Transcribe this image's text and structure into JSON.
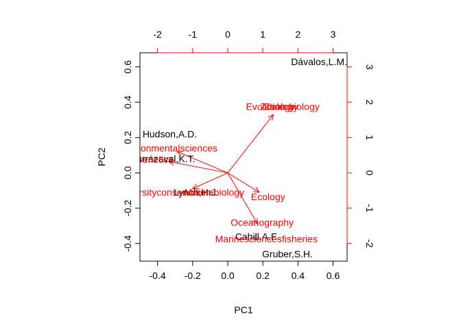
{
  "chart_data": {
    "type": "scatter",
    "subtype": "biplot",
    "title": "",
    "xlabel": "PC1",
    "ylabel": "PC2",
    "xlim": [
      -0.5,
      0.68
    ],
    "ylim": [
      -0.5,
      0.68
    ],
    "xticks": [
      -0.4,
      -0.2,
      0.0,
      0.2,
      0.4,
      0.6
    ],
    "xtick_labels": [
      "-0.4",
      "-0.2",
      "0.0",
      "0.2",
      "0.4",
      "0.6"
    ],
    "yticks": [
      -0.4,
      -0.2,
      0.0,
      0.2,
      0.4,
      0.6
    ],
    "ytick_labels": [
      "-0.4",
      "-0.2",
      "0.0",
      "0.2",
      "0.4",
      "0.6"
    ],
    "top_axis": {
      "lim": [
        -2.5,
        3.4
      ],
      "ticks": [
        -2,
        -1,
        0,
        1,
        2,
        3
      ],
      "tick_labels": [
        "-2",
        "-1",
        "0",
        "1",
        "2",
        "3"
      ],
      "color": "#ff0000"
    },
    "right_axis": {
      "lim": [
        -2.5,
        3.4
      ],
      "ticks": [
        -2,
        -1,
        0,
        1,
        2,
        3
      ],
      "tick_labels": [
        "-2",
        "-1",
        "0",
        "1",
        "2",
        "3"
      ],
      "color": "#ff0000"
    },
    "grid": false,
    "scores": {
      "color": "#000000",
      "points": [
        {
          "label": "Dávalos,L.M.",
          "x": 0.52,
          "y": 0.63
        },
        {
          "label": "Hudson,A.D.",
          "x": -0.33,
          "y": 0.22
        },
        {
          "label": "Yrarrázaval,K.T.",
          "x": -0.38,
          "y": 0.08
        },
        {
          "label": "Lynch,H.J.",
          "x": -0.18,
          "y": -0.11
        },
        {
          "label": "Cahill,A.E.",
          "x": 0.17,
          "y": -0.36
        },
        {
          "label": "Gruber,S.H.",
          "x": 0.34,
          "y": -0.46
        }
      ]
    },
    "loadings": {
      "color": "#ff0000",
      "arrows": [
        {
          "label": "Evolution",
          "x": 1.3,
          "y": 1.65,
          "lx": 1.08,
          "ly": 1.88
        },
        {
          "label": "Zoology",
          "x": 1.3,
          "y": 1.65,
          "lx": 1.42,
          "ly": 1.88
        },
        {
          "label": "Zoology",
          "x": 1.3,
          "y": 1.65,
          "lx": 1.52,
          "ly": 1.88
        },
        {
          "label": "biology",
          "x": 1.3,
          "y": 1.65,
          "lx": 2.18,
          "ly": 1.88
        },
        {
          "label": "Environmentalsciences",
          "x": -1.44,
          "y": 0.6,
          "lx": -1.7,
          "ly": 0.7
        },
        {
          "label": "Genetics",
          "x": -1.68,
          "y": 0.32,
          "lx": -2.1,
          "ly": 0.38
        },
        {
          "label": "Biodiversityconservation",
          "x": -1.0,
          "y": -0.45,
          "lx": -1.95,
          "ly": -0.55
        },
        {
          "label": "Marinebiology",
          "x": -1.0,
          "y": -0.45,
          "lx": -0.38,
          "ly": -0.55
        },
        {
          "label": "Ecology",
          "x": 0.9,
          "y": -0.55,
          "lx": 1.15,
          "ly": -0.68
        },
        {
          "label": "Oceanography",
          "x": 0.85,
          "y": -1.45,
          "lx": 0.98,
          "ly": -1.4
        },
        {
          "label": "Marinesciencesfisheries",
          "x": 0.85,
          "y": -1.45,
          "lx": 1.1,
          "ly": -1.87
        }
      ]
    }
  }
}
